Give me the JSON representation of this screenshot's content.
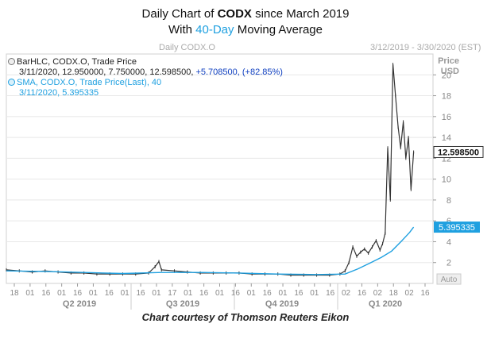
{
  "header": {
    "line1_prefix": "Daily Chart of ",
    "line1_ticker": "CODX",
    "line1_suffix": " since March 2019",
    "line2_prefix": "With ",
    "line2_accent": "40-Day",
    "line2_suffix": " Moving Average",
    "panel_title": "Daily CODX.O",
    "date_range": "3/12/2019 - 3/30/2020 (EST)"
  },
  "legend": {
    "bar_label": "BarHLC, CODX.O, Trade Price",
    "bar_values": "3/11/2020, 12.950000, 7.750000, 12.598500,",
    "bar_change": "+5.708500, (+82.85%)",
    "sma_label": "SMA, CODX.O, Trade Price(Last),  40",
    "sma_values": "3/11/2020, 5.395335"
  },
  "credit": "Chart courtesy of Thomson Reuters Eikon",
  "colors": {
    "price": "#333333",
    "sma": "#1fa0e0",
    "accent": "#1fa0e0",
    "change": "#1040c0",
    "grid": "#e8e8e8"
  },
  "chart_data": {
    "type": "line",
    "y_axis_title": "Price\nUSD",
    "y_ticks": [
      "2",
      "4",
      "6",
      "8",
      "10",
      "12",
      "14",
      "16",
      "18",
      "20"
    ],
    "ylim": [
      0,
      22
    ],
    "axis_extra_label": "Auto",
    "x_day_ticks": [
      "18",
      "01",
      "16",
      "01",
      "16",
      "01",
      "16",
      "01",
      "16",
      "01",
      "17",
      "01",
      "16",
      "01",
      "16",
      "01",
      "16",
      "01",
      "16",
      "01",
      "16",
      "02",
      "16",
      "02",
      "18",
      "02",
      "16"
    ],
    "x_quarters": [
      "Q2 2019",
      "Q3 2019",
      "Q4 2019",
      "Q1 2020"
    ],
    "last_price_label": "12.598500",
    "last_sma_label": "5.395335",
    "series": [
      {
        "name": "BarHLC, CODX.O, Trade Price",
        "style": "hlc-bars",
        "points": [
          [
            0,
            1.3
          ],
          [
            10,
            1.2
          ],
          [
            20,
            1.1
          ],
          [
            30,
            1.2
          ],
          [
            40,
            1.1
          ],
          [
            50,
            1.0
          ],
          [
            60,
            1.0
          ],
          [
            70,
            0.9
          ],
          [
            80,
            0.9
          ],
          [
            90,
            0.9
          ],
          [
            100,
            0.9
          ],
          [
            110,
            1.0
          ],
          [
            115,
            1.6
          ],
          [
            118,
            2.1
          ],
          [
            120,
            1.3
          ],
          [
            130,
            1.2
          ],
          [
            140,
            1.1
          ],
          [
            150,
            1.0
          ],
          [
            160,
            1.0
          ],
          [
            170,
            1.0
          ],
          [
            180,
            1.0
          ],
          [
            190,
            0.9
          ],
          [
            200,
            0.9
          ],
          [
            210,
            0.9
          ],
          [
            220,
            0.8
          ],
          [
            230,
            0.8
          ],
          [
            240,
            0.8
          ],
          [
            250,
            0.8
          ],
          [
            258,
            0.9
          ],
          [
            262,
            1.2
          ],
          [
            265,
            2.0
          ],
          [
            268,
            3.5
          ],
          [
            271,
            2.6
          ],
          [
            274,
            3.0
          ],
          [
            277,
            3.3
          ],
          [
            280,
            2.9
          ],
          [
            283,
            3.5
          ],
          [
            286,
            4.1
          ],
          [
            289,
            3.2
          ],
          [
            291,
            3.8
          ],
          [
            293,
            4.8
          ],
          [
            295,
            13.0
          ],
          [
            297,
            8.0
          ],
          [
            299,
            21.0
          ],
          [
            301,
            18.0
          ],
          [
            303,
            15.0
          ],
          [
            305,
            13.0
          ],
          [
            307,
            15.5
          ],
          [
            309,
            12.0
          ],
          [
            311,
            14.0
          ],
          [
            313,
            9.0
          ],
          [
            315,
            12.6
          ]
        ]
      },
      {
        "name": "SMA, CODX.O, Trade Price(Last), 40",
        "style": "line",
        "points": [
          [
            0,
            1.2
          ],
          [
            30,
            1.15
          ],
          [
            60,
            1.05
          ],
          [
            90,
            0.95
          ],
          [
            120,
            1.05
          ],
          [
            150,
            1.05
          ],
          [
            180,
            1.0
          ],
          [
            210,
            0.9
          ],
          [
            240,
            0.85
          ],
          [
            262,
            0.9
          ],
          [
            272,
            1.4
          ],
          [
            282,
            2.0
          ],
          [
            290,
            2.5
          ],
          [
            298,
            3.1
          ],
          [
            306,
            4.1
          ],
          [
            312,
            4.9
          ],
          [
            315,
            5.4
          ]
        ]
      }
    ]
  }
}
